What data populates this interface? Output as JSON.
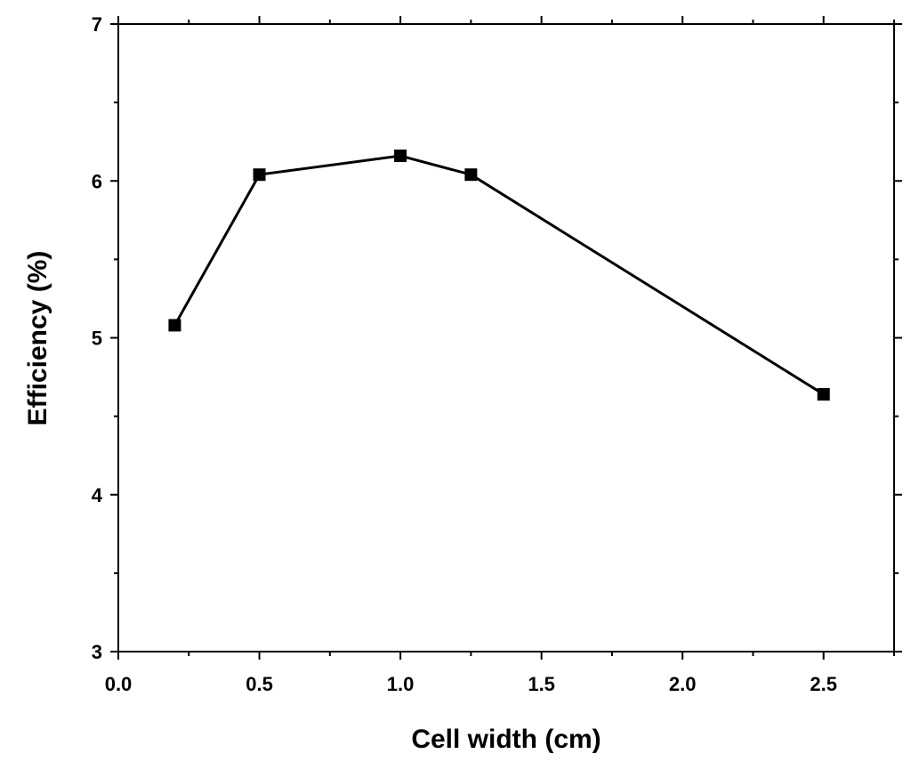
{
  "chart_data": {
    "type": "line",
    "title": "",
    "xlabel": "Cell width (cm)",
    "ylabel": "Efficiency (%)",
    "xlim": [
      0.0,
      2.75
    ],
    "ylim": [
      3,
      7
    ],
    "x_ticks": [
      "0.0",
      "0.5",
      "1.0",
      "1.5",
      "2.0",
      "2.5"
    ],
    "y_ticks": [
      "3",
      "4",
      "5",
      "6",
      "7"
    ],
    "grid": false,
    "legend": "none",
    "marker": "square",
    "line_color": "#000000",
    "series": [
      {
        "x": [
          0.2,
          0.5,
          1.0,
          1.25,
          2.5
        ],
        "y": [
          5.08,
          6.04,
          6.16,
          6.04,
          4.64
        ]
      }
    ]
  }
}
